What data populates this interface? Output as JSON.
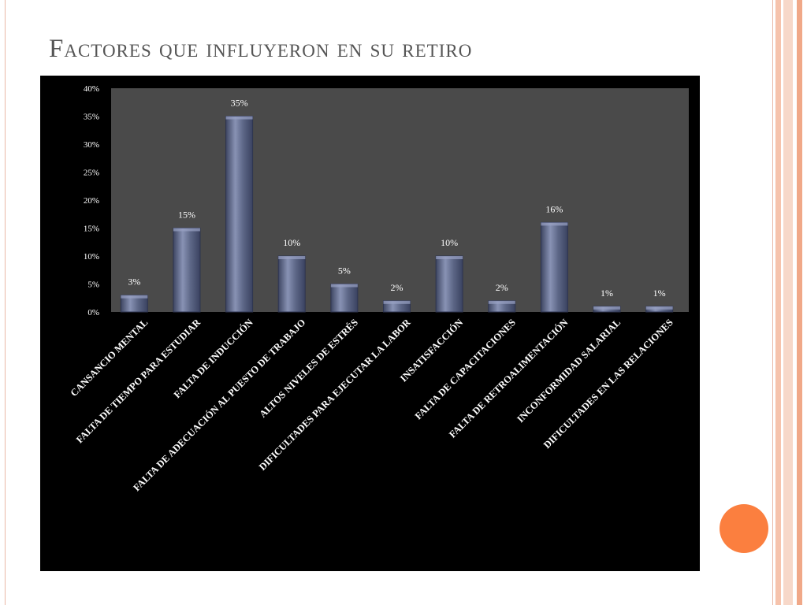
{
  "slide": {
    "title": "Factores que influyeron en su retiro",
    "accent_color": "#fb7f3f",
    "stripe_colors": [
      "#f6c3ac",
      "#f7d8c9",
      "#f0a888"
    ],
    "decoration": "orange-circle"
  },
  "chart_data": {
    "type": "bar",
    "title": "",
    "xlabel": "",
    "ylabel": "",
    "categories": [
      "CANSANCIO MENTAL",
      "FALTA DE TIEMPO PARA ESTUDIAR",
      "FALTA DE INDUCCIÓN",
      "FALTA DE ADECUACIÓN AL PUESTO DE TRABAJO",
      "ALTOS NIVELES DE ESTRÉS",
      "DIFICULTADES PARA EJECUTAR LA LABOR",
      "INSATISFACCIÓN",
      "FALTA DE CAPACITACIONES",
      "FALTA DE RETROALIMENTACIÓN",
      "INCONFORMIDAD SALARIAL",
      "DIFICULTADES EN LAS RELACIONES"
    ],
    "values": [
      3,
      15,
      35,
      10,
      5,
      2,
      10,
      2,
      16,
      1,
      1
    ],
    "data_labels": [
      "3%",
      "15%",
      "35%",
      "10%",
      "5%",
      "2%",
      "10%",
      "2%",
      "16%",
      "1%",
      "1%"
    ],
    "ylim": [
      0,
      40
    ],
    "y_ticks": [
      0,
      5,
      10,
      15,
      20,
      25,
      30,
      35,
      40
    ],
    "y_tick_labels": [
      "0%",
      "5%",
      "10%",
      "15%",
      "20%",
      "25%",
      "30%",
      "35%",
      "40%"
    ],
    "grid": false,
    "legend": "none",
    "colors": {
      "background": "#000000",
      "plot_area": "#4a4a4a",
      "bar_fill": "#5c6686",
      "bar_highlight": "#8892b4",
      "text": "#ffffff"
    }
  }
}
